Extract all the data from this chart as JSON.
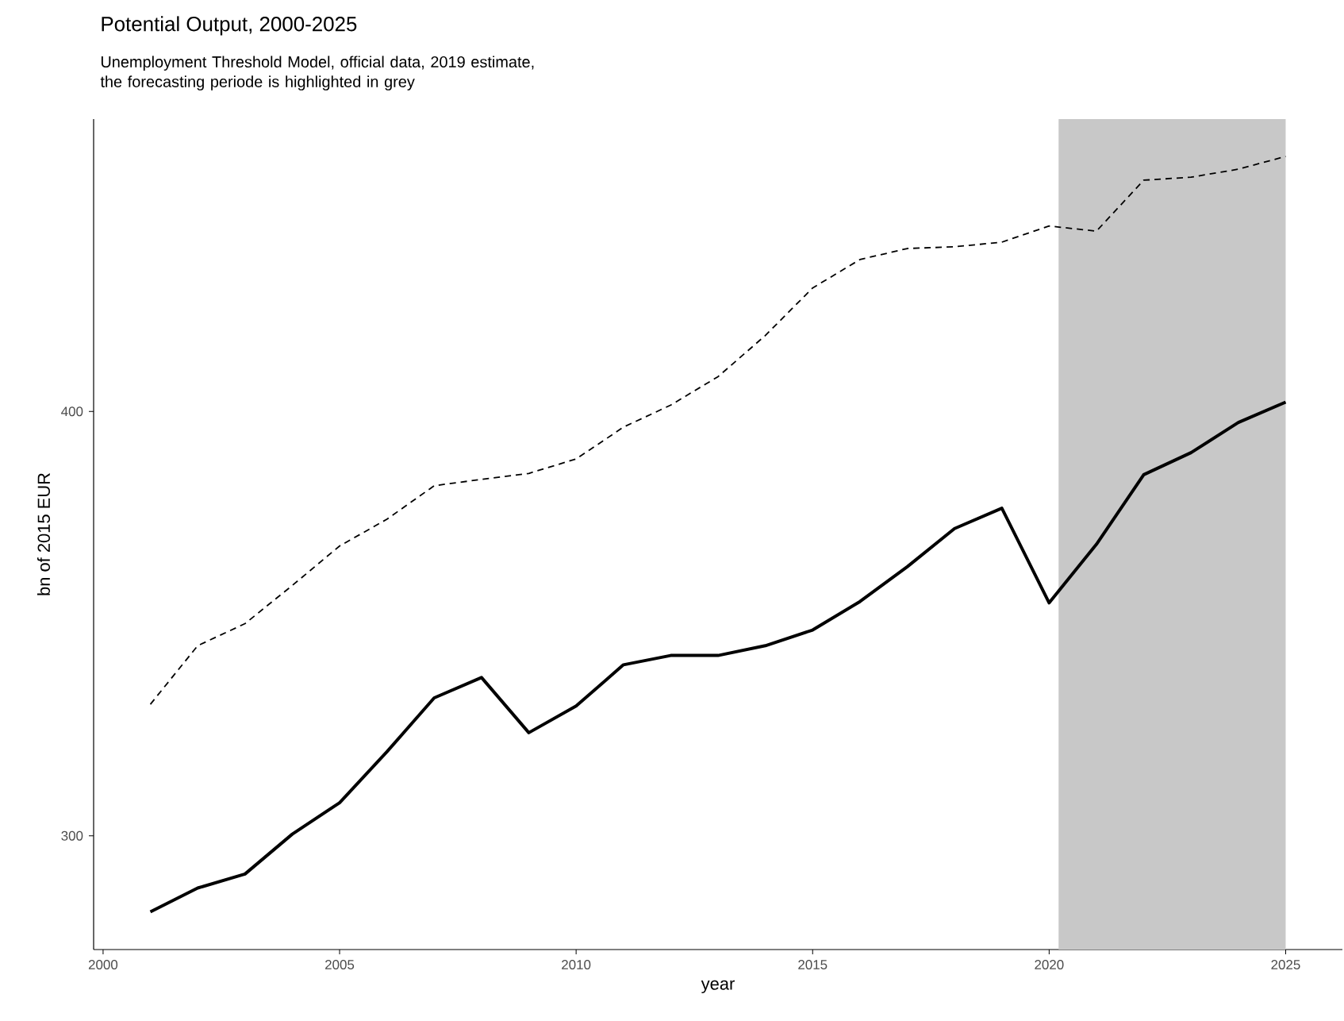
{
  "chart_data": {
    "type": "line",
    "title": "Potential Output, 2000-2025",
    "subtitle": "Unemployment Threshold Model, official data, 2019 estimate, the forecasting periode is highlighted in grey",
    "xlabel": "year",
    "ylabel": "bn of 2015 EUR",
    "x": [
      2001,
      2002,
      2003,
      2004,
      2005,
      2006,
      2007,
      2008,
      2009,
      2010,
      2011,
      2012,
      2013,
      2014,
      2015,
      2016,
      2017,
      2018,
      2019,
      2020,
      2021,
      2022,
      2023,
      2024,
      2025
    ],
    "series": [
      {
        "color": "#000000",
        "line_style": "solid",
        "values": [
          282.1,
          287.7,
          291.0,
          300.4,
          307.8,
          319.8,
          332.5,
          337.3,
          324.3,
          330.6,
          340.3,
          342.5,
          342.5,
          344.8,
          348.5,
          355.2,
          363.4,
          372.4,
          377.2,
          354.9,
          368.7,
          385.1,
          390.3,
          397.4,
          402.2
        ]
      },
      {
        "color": "#000000",
        "line_style": "dashed",
        "values": [
          331.0,
          344.8,
          350.0,
          359.0,
          368.3,
          374.6,
          382.5,
          384.0,
          385.4,
          388.8,
          396.3,
          401.5,
          408.2,
          417.9,
          429.1,
          435.8,
          438.4,
          438.8,
          439.9,
          443.7,
          442.5,
          454.5,
          455.2,
          457.1,
          460.1
        ]
      }
    ],
    "xlim": [
      1999.8,
      2026.2
    ],
    "ylim": [
      273.2,
      468.9
    ],
    "xticks": [
      2000,
      2005,
      2010,
      2015,
      2020,
      2025
    ],
    "yticks": [
      300,
      400
    ],
    "bands": [
      {
        "axis": "x",
        "from": 2020.2,
        "to": 2025,
        "color": "#c8c8c8"
      }
    ],
    "grid": false
  }
}
